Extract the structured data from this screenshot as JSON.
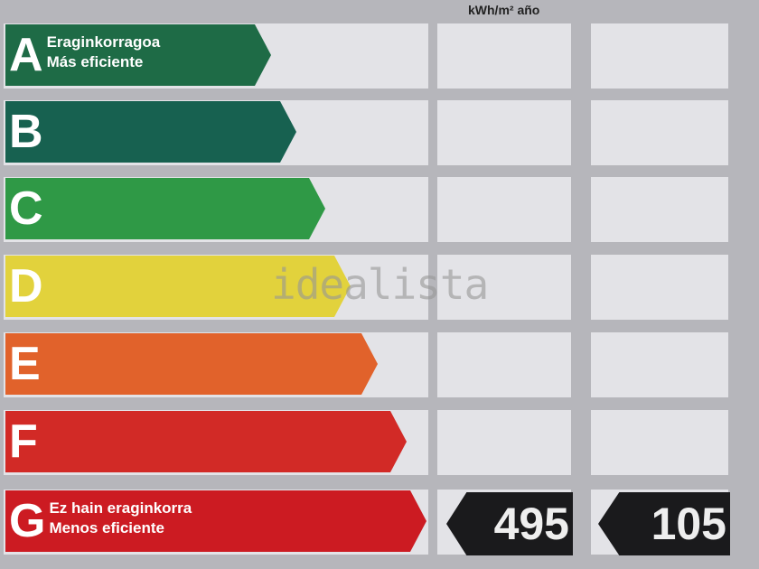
{
  "header": {
    "unit": "kWh/m² año"
  },
  "ratings": [
    {
      "letter": "A",
      "line1": "Eraginkorragoa",
      "line2": "Más eficiente",
      "color": "#1e6b46"
    },
    {
      "letter": "B",
      "line1": "",
      "line2": "",
      "color": "#176150"
    },
    {
      "letter": "C",
      "line1": "",
      "line2": "",
      "color": "#2f9946"
    },
    {
      "letter": "D",
      "line1": "",
      "line2": "",
      "color": "#e2d23c"
    },
    {
      "letter": "E",
      "line1": "",
      "line2": "",
      "color": "#e1622b"
    },
    {
      "letter": "F",
      "line1": "",
      "line2": "",
      "color": "#d22a26"
    },
    {
      "letter": "G",
      "line1": "Ez hain eraginkorra",
      "line2": "Menos eficiente",
      "color": "#cc1b22"
    }
  ],
  "values": {
    "consumption": "495",
    "emissions": "105",
    "rating": "G"
  },
  "watermark": "idealista"
}
